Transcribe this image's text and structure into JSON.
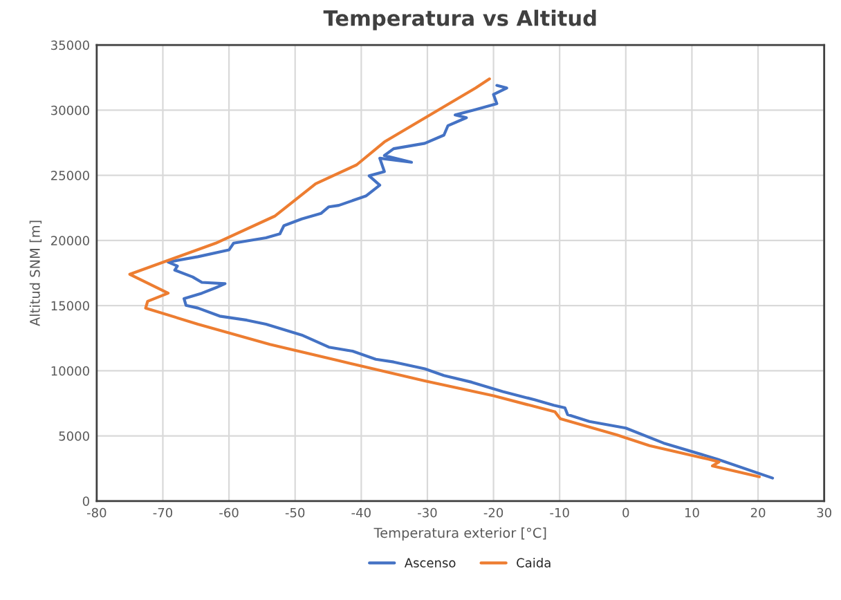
{
  "chart_data": {
    "type": "line",
    "title": "Temperatura vs Altitud",
    "xlabel": "Temperatura exterior [°C]",
    "ylabel": "Altitud SNM [m]",
    "xlim": [
      -80,
      30
    ],
    "xticks": [
      -80,
      -70,
      -60,
      -50,
      -40,
      -30,
      -20,
      -10,
      0,
      10,
      20,
      30
    ],
    "ylim": [
      0,
      35000
    ],
    "yticks": [
      0,
      5000,
      10000,
      15000,
      20000,
      25000,
      30000,
      35000
    ],
    "grid": true,
    "legend": "bottom",
    "marker": "none",
    "line_style": "solid",
    "series": [
      {
        "name": "Ascenso",
        "color": "#4472c4",
        "x": [
          22.2,
          13.9,
          5.7,
          0,
          -5.5,
          -8.8,
          -9.2,
          -10.9,
          -13.8,
          -18.6,
          -23.3,
          -27.5,
          -30.4,
          -35.1,
          -37.8,
          -41.3,
          -44.9,
          -49,
          -54.4,
          -57.3,
          -61.4,
          -64.7,
          -66.5,
          -66.8,
          -64.1,
          -62,
          -60.6,
          -64.1,
          -65.5,
          -68.2,
          -67.8,
          -69.2,
          -64.7,
          -60,
          -59.3,
          -54.4,
          -52.3,
          -51.7,
          -49,
          -46.1,
          -44.9,
          -43.4,
          -39.3,
          -37.2,
          -38.8,
          -36.5,
          -37.2,
          -32.4,
          -36.5,
          -35.1,
          -30.4,
          -27.5,
          -26.9,
          -24.1,
          -25.8,
          -22.7,
          -19.5,
          -20,
          -18,
          -19.5
        ],
        "values": [
          1760,
          3200,
          4450,
          5600,
          6100,
          6630,
          7150,
          7350,
          7770,
          8400,
          9120,
          9630,
          10150,
          10670,
          10880,
          11500,
          11810,
          12740,
          13570,
          13880,
          14190,
          14810,
          15020,
          15540,
          15950,
          16370,
          16680,
          16780,
          17200,
          17720,
          18030,
          18340,
          18750,
          19270,
          19790,
          20200,
          20510,
          21130,
          21650,
          22070,
          22580,
          22690,
          23410,
          24240,
          24960,
          25280,
          26310,
          26000,
          26520,
          27040,
          27450,
          28080,
          28800,
          29420,
          29630,
          30040,
          30500,
          31200,
          31700,
          31900
        ]
      },
      {
        "name": "Caida",
        "color": "#ed7d31",
        "x": [
          -20.6,
          -22.7,
          -36.5,
          -40.7,
          -46.9,
          -53.1,
          -62,
          -75,
          -69.2,
          -72.3,
          -72.6,
          -64.7,
          -53.8,
          -43.4,
          -30.4,
          -20,
          -10.7,
          -9.9,
          -1.4,
          3.6,
          12.5,
          14.1,
          13.1,
          20.2
        ],
        "values": [
          32400,
          31700,
          27560,
          25800,
          24350,
          21860,
          19790,
          17400,
          15950,
          15330,
          14810,
          13570,
          12020,
          10770,
          9220,
          8080,
          6840,
          6320,
          5080,
          4250,
          3210,
          3000,
          2690,
          1860
        ]
      }
    ]
  }
}
